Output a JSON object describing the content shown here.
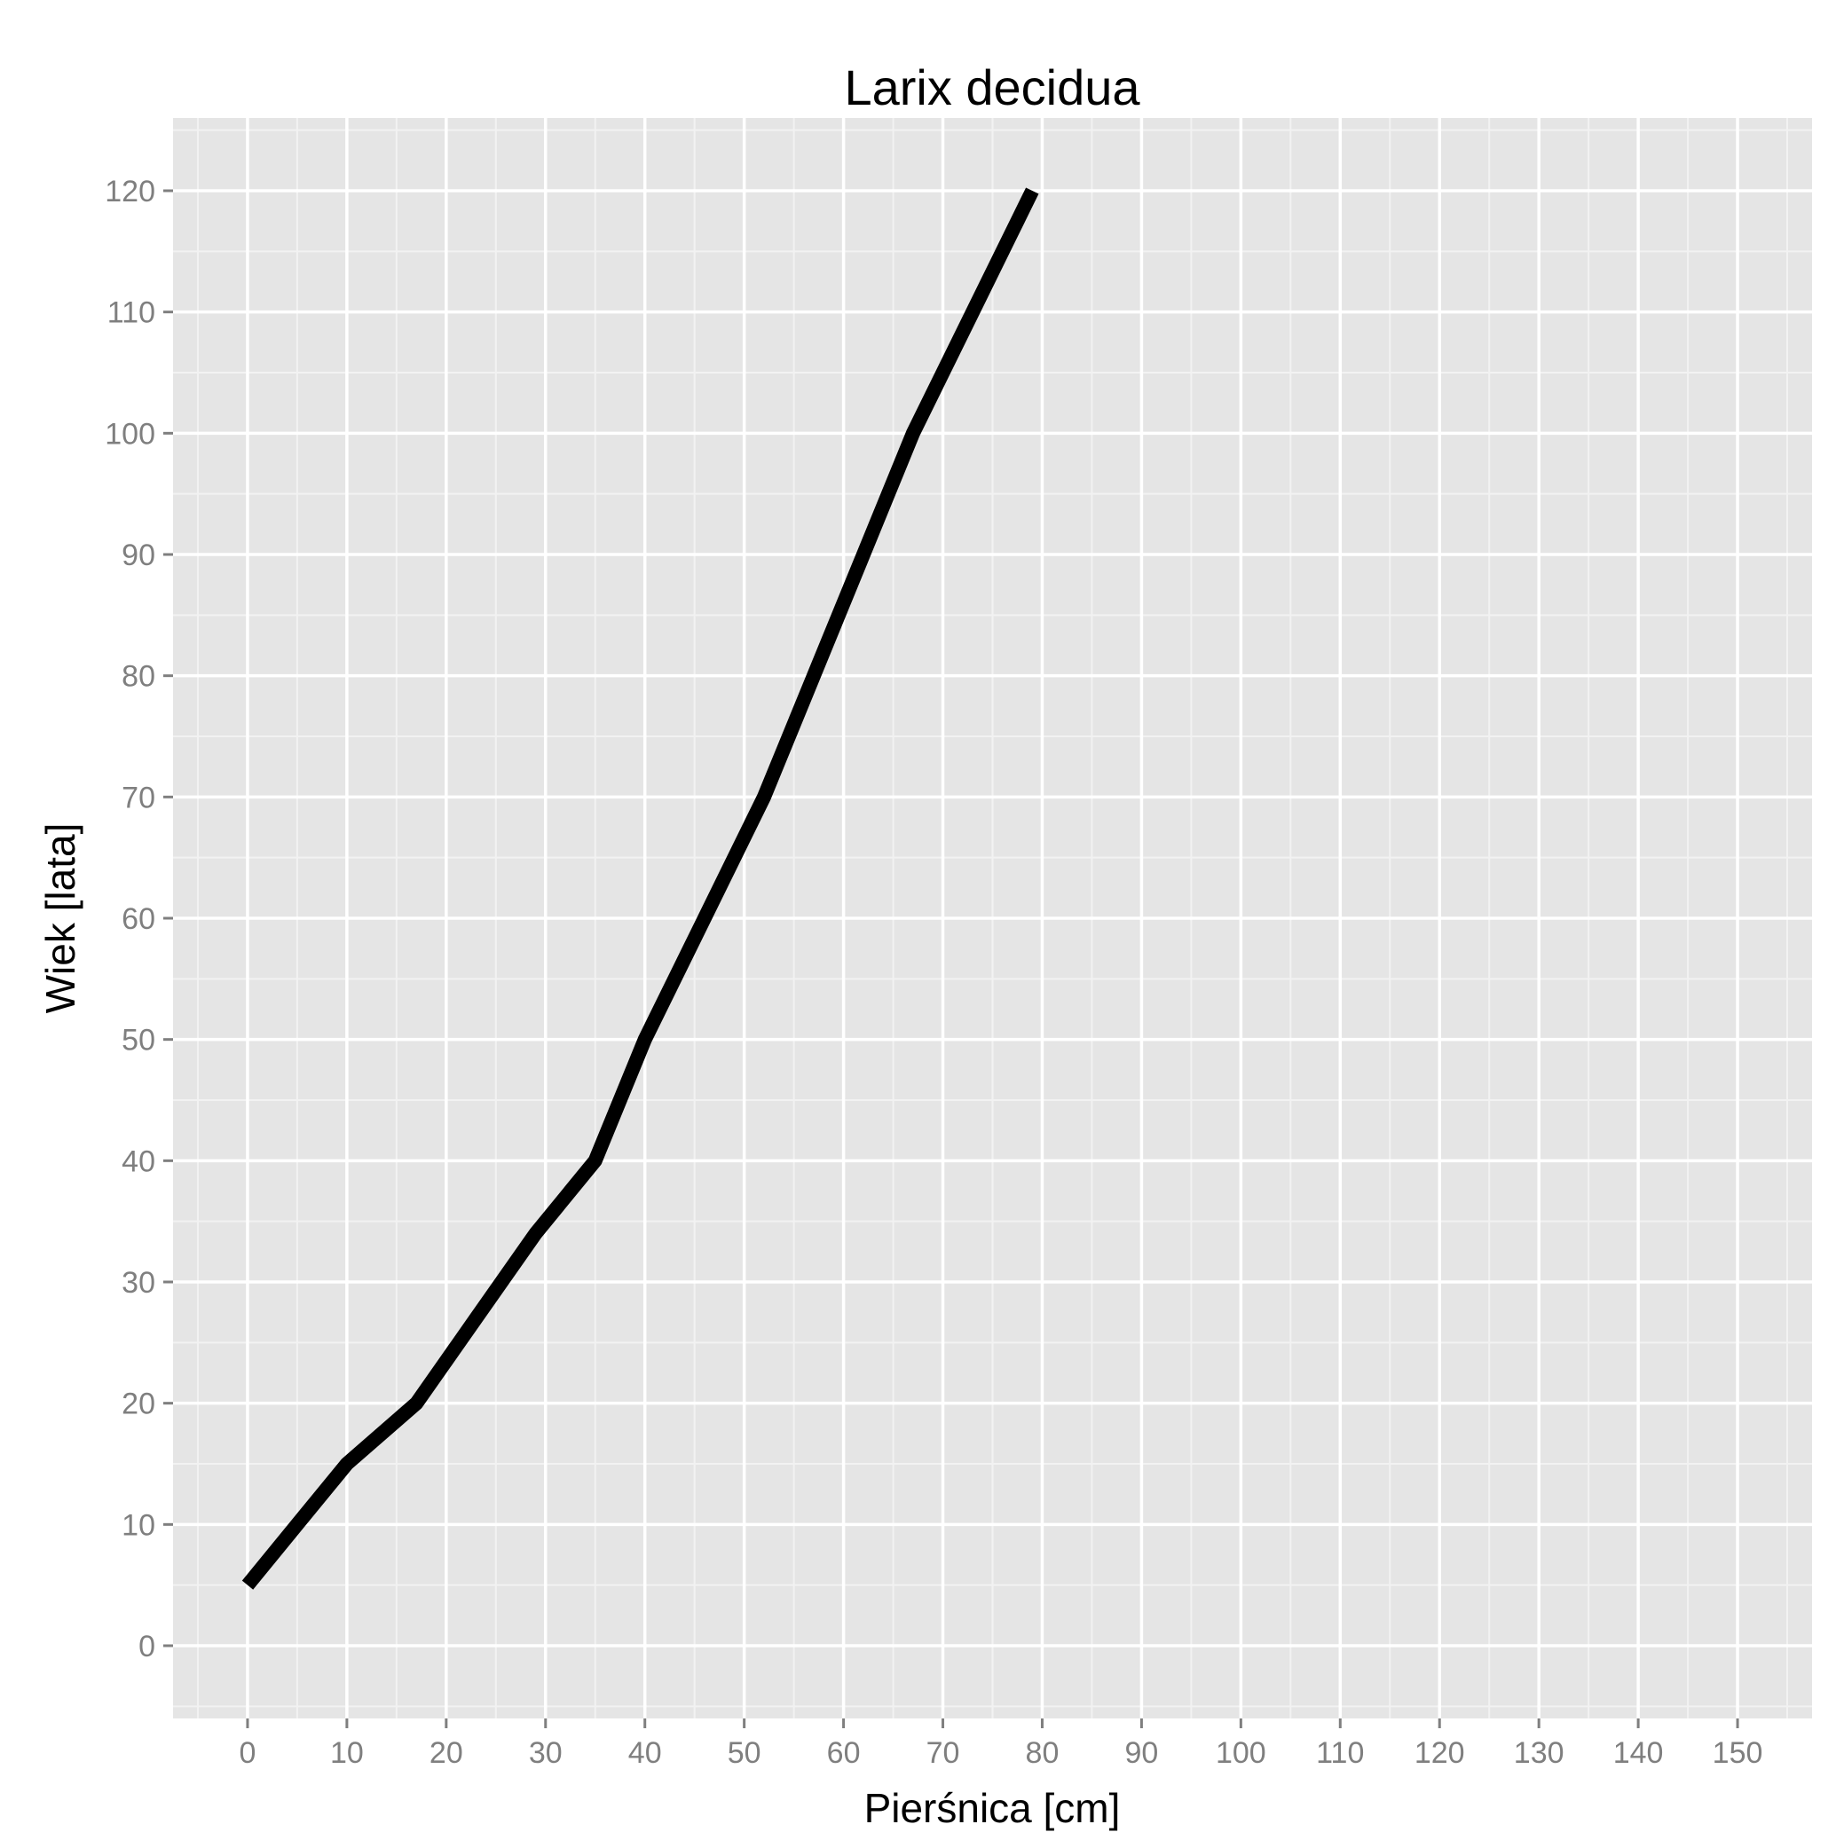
{
  "chart_data": {
    "type": "line",
    "title": "Larix decidua",
    "xlabel": "Pierśnica [cm]",
    "ylabel": "Wiek [lata]",
    "xlim": [
      -7.5,
      157.5
    ],
    "ylim": [
      -6,
      126
    ],
    "xticks": [
      0,
      10,
      20,
      30,
      40,
      50,
      60,
      70,
      80,
      90,
      100,
      110,
      120,
      130,
      140,
      150
    ],
    "yticks": [
      0,
      10,
      20,
      30,
      40,
      50,
      60,
      70,
      80,
      90,
      100,
      110,
      120
    ],
    "grid": true,
    "colors": {
      "panel": "#e5e5e5",
      "grid_major": "#ffffff",
      "grid_minor": "#f2f2f2",
      "line": "#000000",
      "tick_text": "#7f7f7f"
    },
    "series": [
      {
        "x": [
          0,
          5,
          10,
          17,
          23,
          29,
          35,
          40,
          46,
          52,
          57,
          62,
          67,
          73,
          79
        ],
        "y": [
          5,
          10,
          15,
          20,
          27,
          34,
          40,
          50,
          60,
          70,
          80,
          90,
          100,
          110,
          120
        ]
      }
    ]
  }
}
